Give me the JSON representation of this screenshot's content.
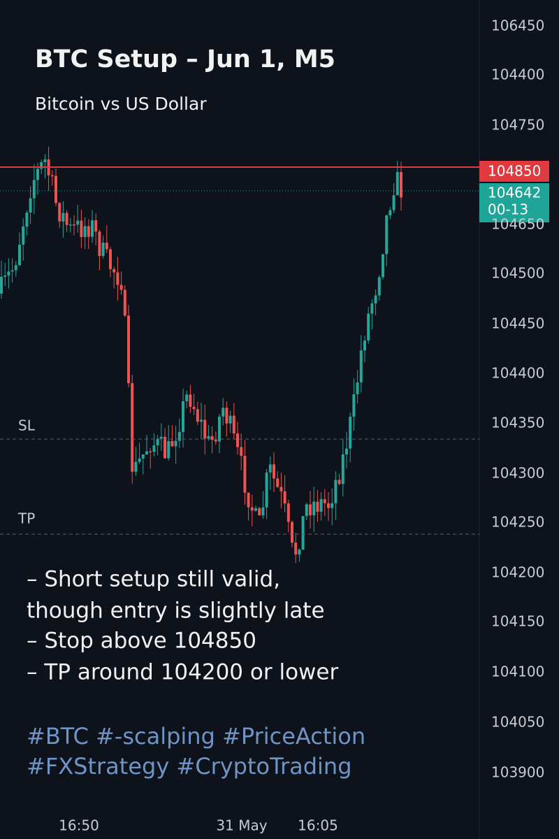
{
  "header": {
    "title": "BTC Setup – Jun 1, M5",
    "subtitle": "Bitcoin vs US Dollar"
  },
  "price_axis": [
    "106450",
    "104400",
    "104750",
    "104650",
    "104500",
    "104450",
    "104400",
    "104350",
    "104300",
    "104250",
    "104200",
    "104150",
    "104100",
    "104050",
    "103900"
  ],
  "price_tags": {
    "stop": "104850",
    "current": "104642",
    "countdown": "00-13"
  },
  "levels": {
    "sl": "SL",
    "tp": "TP"
  },
  "time_axis": [
    "16:50",
    "31 May",
    "16:05"
  ],
  "notes": [
    "– Short setup still valid,",
    "though entry is slightly late",
    "– Stop above 104850",
    "– TP around 104200 or lower"
  ],
  "hashtags": [
    "#BTC #-scalping #PriceAction",
    "#FXStrategy #CryptoTrading"
  ]
}
